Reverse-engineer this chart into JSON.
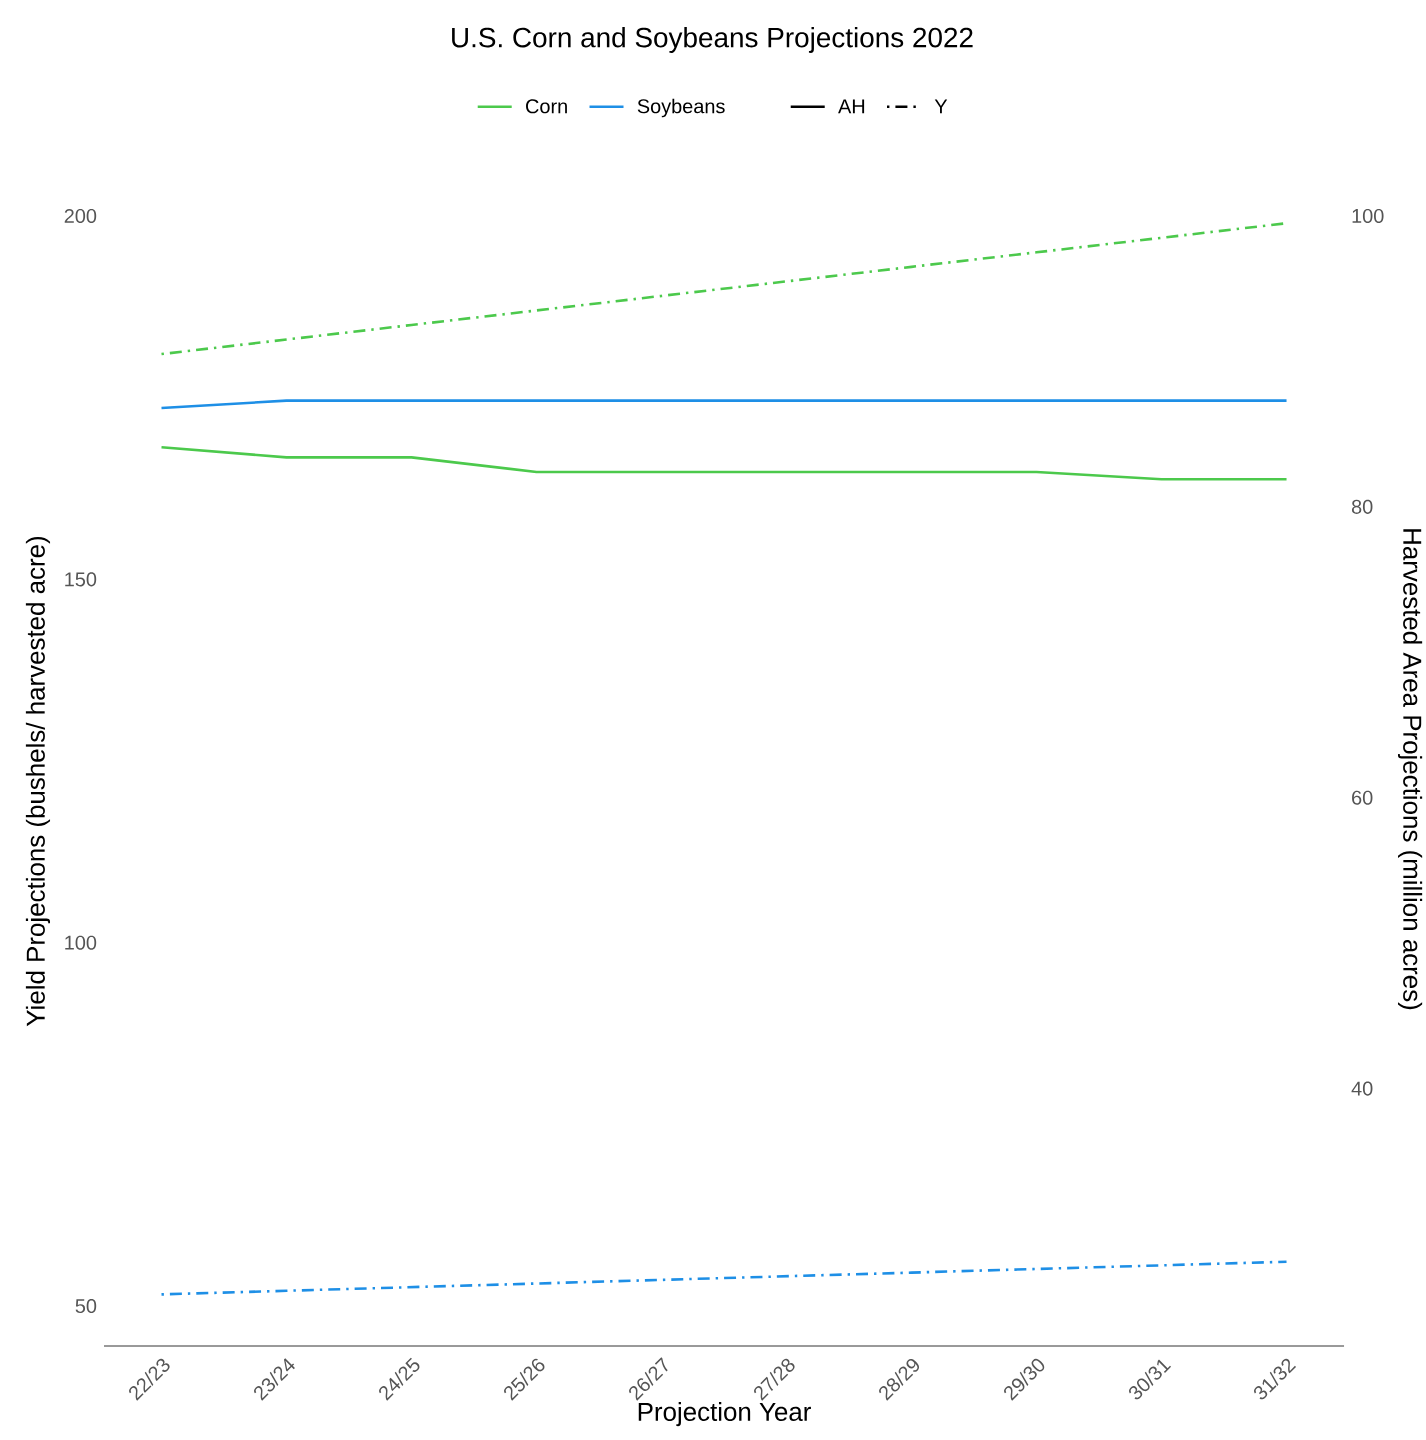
{
  "chart_data": {
    "type": "line",
    "title": "U.S. Corn and Soybeans Projections 2022",
    "xlabel": "Projection Year",
    "ylabel": "Yield Projections (bushels/ harvested acre)",
    "y2label": "Harvested Area Projections (million acres)",
    "categories": [
      "22/23",
      "23/24",
      "24/25",
      "25/26",
      "26/27",
      "27/28",
      "28/29",
      "29/30",
      "30/31",
      "31/32"
    ],
    "series": [
      {
        "name": "Corn",
        "color": "#4cc94c",
        "axis": "y2",
        "line_style": "solid",
        "values": [
          84.1,
          83.4,
          83.4,
          82.4,
          82.4,
          82.4,
          82.4,
          82.4,
          81.9,
          81.9
        ]
      },
      {
        "name": "Soybeans",
        "color": "#1e8fe6",
        "axis": "y2",
        "line_style": "solid",
        "values": [
          86.8,
          87.3,
          87.3,
          87.3,
          87.3,
          87.3,
          87.3,
          87.3,
          87.3,
          87.3
        ]
      },
      {
        "color": "#4cc94c",
        "axis": "y",
        "line_style": "dashdot",
        "values": [
          181,
          183,
          185,
          187,
          189,
          191,
          193,
          195,
          197,
          199
        ]
      },
      {
        "color": "#1e8fe6",
        "axis": "y",
        "line_style": "dashdot",
        "values": [
          51.6,
          52.1,
          52.6,
          53.1,
          53.6,
          54.1,
          54.6,
          55.1,
          55.6,
          56.1
        ]
      }
    ],
    "ylim": [
      44.5,
      200
    ],
    "yticks": [
      50,
      100,
      150,
      200
    ],
    "y2lim": [
      22.3,
      100
    ],
    "y2ticks": [
      40,
      60,
      80,
      100
    ],
    "annotations": [
      "AH",
      "Y"
    ],
    "legend": "top",
    "grid": false,
    "marker": "none"
  }
}
